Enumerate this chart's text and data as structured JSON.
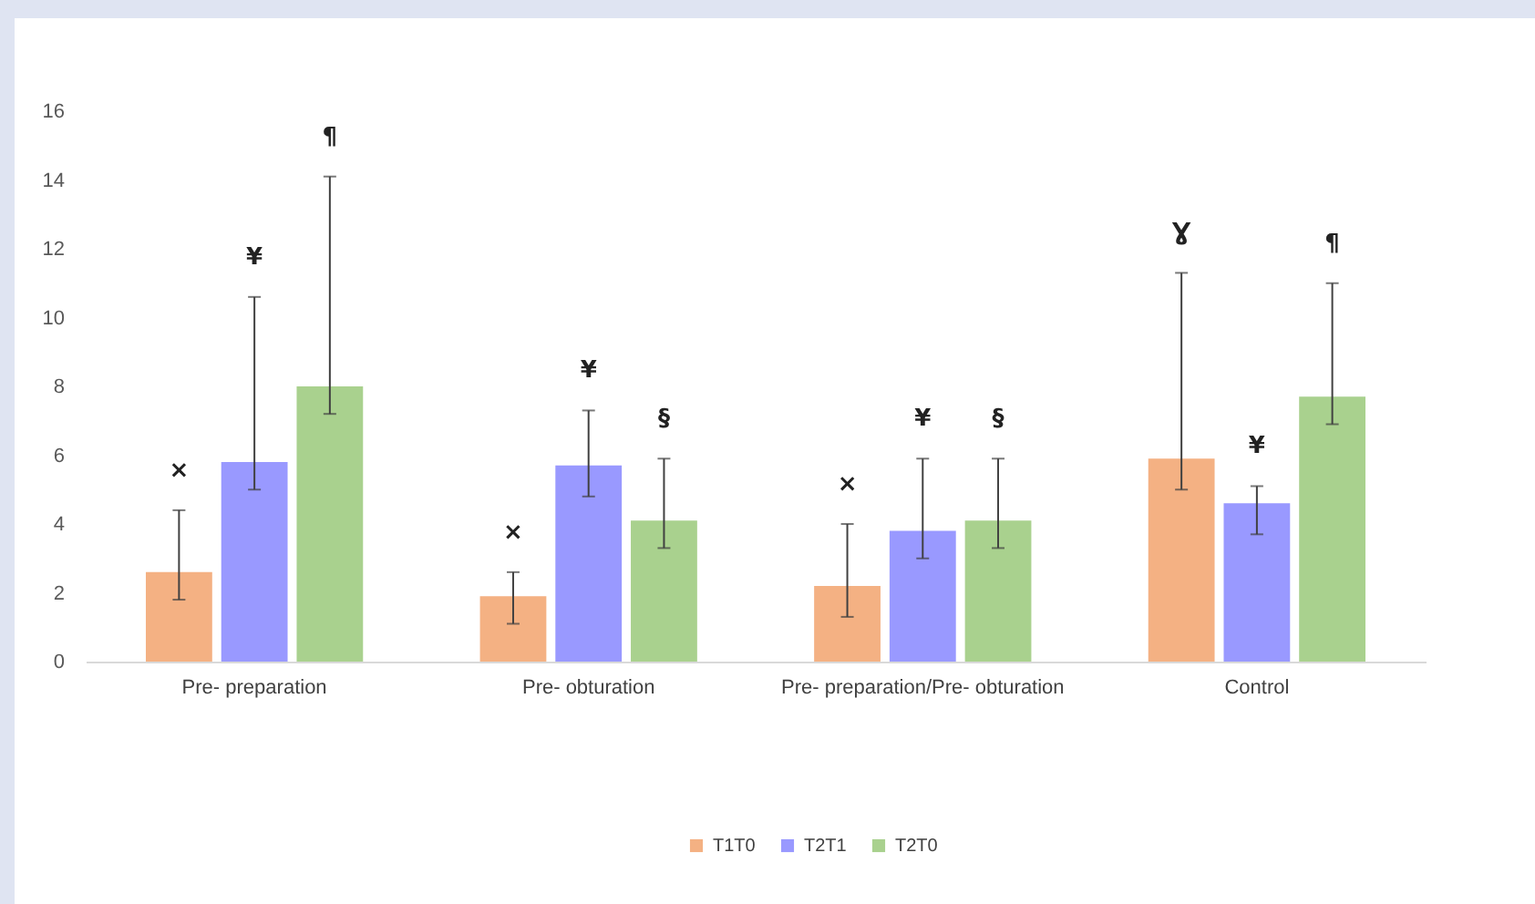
{
  "chart_data": {
    "type": "bar",
    "categories": [
      "Pre- preparation",
      "Pre- obturation",
      "Pre- preparation/Pre- obturation",
      "Control"
    ],
    "series": [
      {
        "name": "T1T0",
        "color": "#f4b183",
        "values": [
          2.6,
          1.9,
          2.2,
          5.9
        ],
        "errors": [
          [
            1.8,
            4.4
          ],
          [
            1.1,
            2.6
          ],
          [
            1.3,
            4.0
          ],
          [
            5.0,
            11.3
          ]
        ]
      },
      {
        "name": "T2T1",
        "color": "#9999ff",
        "values": [
          5.8,
          5.7,
          3.8,
          4.6
        ],
        "errors": [
          [
            5.0,
            10.6
          ],
          [
            4.8,
            7.3
          ],
          [
            3.0,
            5.9
          ],
          [
            3.7,
            5.1
          ]
        ]
      },
      {
        "name": "T2T0",
        "color": "#a9d18e",
        "values": [
          8.0,
          4.1,
          4.1,
          7.7
        ],
        "errors": [
          [
            7.2,
            14.1
          ],
          [
            3.3,
            5.9
          ],
          [
            3.3,
            5.9
          ],
          [
            6.9,
            11.0
          ]
        ]
      }
    ],
    "ylim": [
      0,
      16
    ],
    "yticks": [
      0,
      2,
      4,
      6,
      8,
      10,
      12,
      14,
      16
    ],
    "grid": false,
    "legend": "bottom",
    "annotations": [
      "×",
      "¥",
      "¶",
      "×",
      "¥",
      "§",
      "×",
      "¥",
      "§",
      "Ɣ",
      "¥",
      "¶"
    ]
  }
}
